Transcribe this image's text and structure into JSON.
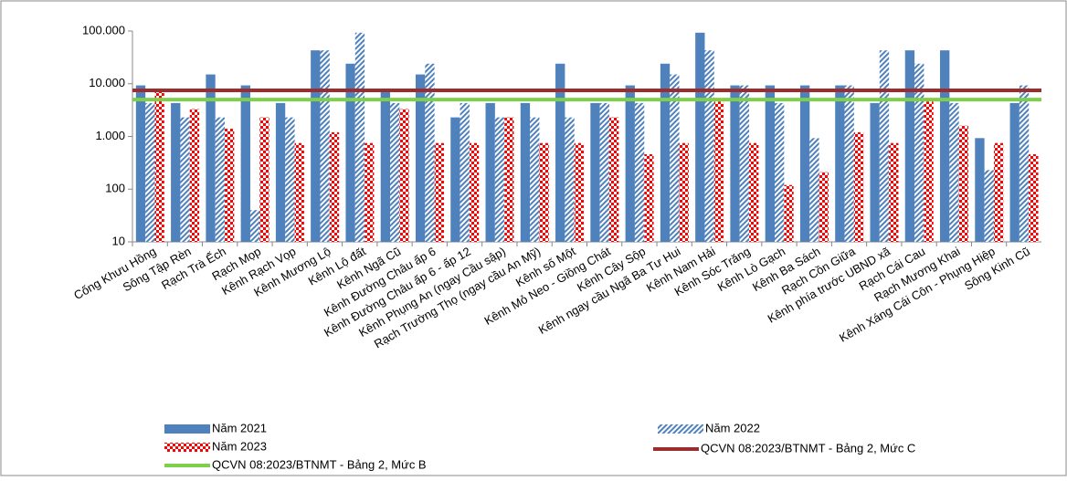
{
  "chart_data": {
    "type": "bar",
    "log_scale": true,
    "categories": [
      "Cống Khưu Hồng",
      "Sông Tập Rèn",
      "Rạch Trà Ếch",
      "Rạch Mọp",
      "Kênh Rạch Vọp",
      "Kênh Mương Lộ",
      "Kênh Lộ đất",
      "Kênh Ngã Cũ",
      "Kênh Đường Châu ấp 6",
      "Kênh Đường Châu ấp 6 - ấp 12",
      "Kênh Phụng An (ngay Cầu sập)",
      "Rạch Trường Thọ (ngay cầu An Mỹ)",
      "Kênh số Một",
      "Kênh Mỏ Neo - Giồng Chát",
      "Kênh Cây Sộp",
      "Kênh ngay cầu Ngã Ba Tư Hui",
      "Kênh Nam Hải",
      "Kênh Sóc Trăng",
      "Kênh Lò Gạch",
      "Kênh Ba Sách",
      "Rạch Cồn Giữa",
      "Kênh phía trước UBND xã",
      "Rạch Cái Cau",
      "Rạch Mương Khai",
      "Kênh Xáng Cái Côn - Phụng Hiệp",
      "Sông Kinh Cũ"
    ],
    "series": [
      {
        "name": "Năm 2021",
        "color": "#4f81bd",
        "fill_pattern": "solid",
        "values": [
          9300,
          4300,
          15000,
          9300,
          4300,
          43000,
          24000,
          7500,
          15000,
          2300,
          4300,
          4300,
          24000,
          4300,
          9300,
          24000,
          93000,
          9300,
          9300,
          9300,
          9300,
          4300,
          43000,
          43000,
          930,
          4300
        ]
      },
      {
        "name": "Năm 2022",
        "color": "#4f81bd",
        "fill_pattern": "hatch",
        "values": [
          4300,
          2300,
          2300,
          40,
          2300,
          43000,
          93000,
          4300,
          24000,
          4300,
          2300,
          2300,
          2300,
          4300,
          4300,
          15000,
          43000,
          9300,
          4300,
          930,
          9300,
          43000,
          24000,
          4300,
          230,
          9300
        ]
      },
      {
        "name": "Năm 2023",
        "color": "#ff0000",
        "fill_pattern": "checker",
        "values": [
          7500,
          3300,
          1400,
          2300,
          750,
          1200,
          750,
          3300,
          750,
          750,
          2300,
          750,
          750,
          2300,
          460,
          750,
          4600,
          750,
          120,
          210,
          1200,
          750,
          4600,
          1600,
          750,
          460
        ]
      }
    ],
    "reference_lines": [
      {
        "name": "QCVN 08:2023/BTNMT - Bảng 2, Mức C",
        "color": "#9b2d2d",
        "value": 7500
      },
      {
        "name": "QCVN 08:2023/BTNMT - Bảng 2, Mức B",
        "color": "#7ed04b",
        "value": 5000
      }
    ],
    "ylim": [
      10,
      100000
    ],
    "yticks": [
      10,
      100,
      {
        "value": 1000,
        "label": "1.000"
      },
      {
        "value": 10000,
        "label": "10.000"
      },
      {
        "value": 100000,
        "label": "100.000"
      }
    ]
  }
}
